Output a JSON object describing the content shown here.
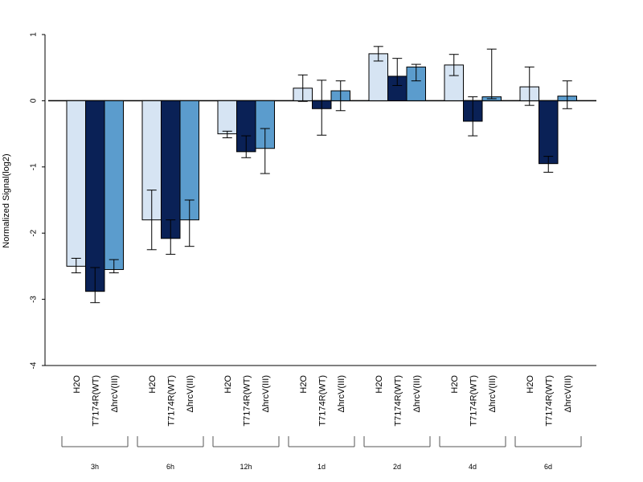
{
  "chart_data": {
    "type": "bar",
    "title": "",
    "ylabel": "Normalized Signal(log2)",
    "xlabel": "",
    "ylim": [
      -4,
      1
    ],
    "yticks": [
      1,
      0,
      -1,
      -2,
      -3,
      -4
    ],
    "grid": false,
    "error_bars": true,
    "series_labels": [
      "H2O",
      "T7174R(WT)",
      "ΔhrcV(III)"
    ],
    "series_colors": [
      "#d6e4f3",
      "#0a2156",
      "#5b9ccd"
    ],
    "groups": [
      {
        "label": "3h",
        "values": [
          -2.5,
          -2.88,
          -2.55
        ],
        "errors": [
          [
            -2.6,
            -2.38
          ],
          [
            -3.05,
            -2.52
          ],
          [
            -2.6,
            -2.4
          ]
        ]
      },
      {
        "label": "6h",
        "values": [
          -1.8,
          -2.08,
          -1.8
        ],
        "errors": [
          [
            -2.25,
            -1.35
          ],
          [
            -2.32,
            -1.8
          ],
          [
            -2.2,
            -1.5
          ]
        ]
      },
      {
        "label": "12h",
        "values": [
          -0.5,
          -0.77,
          -0.72
        ],
        "errors": [
          [
            -0.56,
            -0.46
          ],
          [
            -0.86,
            -0.53
          ],
          [
            -1.1,
            -0.42
          ]
        ]
      },
      {
        "label": "1d",
        "values": [
          0.19,
          -0.12,
          0.15
        ],
        "errors": [
          [
            -0.01,
            0.39
          ],
          [
            -0.52,
            0.31
          ],
          [
            -0.15,
            0.3
          ]
        ]
      },
      {
        "label": "2d",
        "values": [
          0.71,
          0.37,
          0.51
        ],
        "errors": [
          [
            0.6,
            0.82
          ],
          [
            0.23,
            0.64
          ],
          [
            0.3,
            0.55
          ]
        ]
      },
      {
        "label": "4d",
        "values": [
          0.54,
          -0.31,
          0.06
        ],
        "errors": [
          [
            0.38,
            0.7
          ],
          [
            -0.53,
            0.06
          ],
          [
            0.03,
            0.78
          ]
        ]
      },
      {
        "label": "6d",
        "values": [
          0.21,
          -0.95,
          0.07
        ],
        "errors": [
          [
            -0.07,
            0.51
          ],
          [
            -1.08,
            -0.84
          ],
          [
            -0.12,
            0.3
          ]
        ]
      }
    ]
  }
}
